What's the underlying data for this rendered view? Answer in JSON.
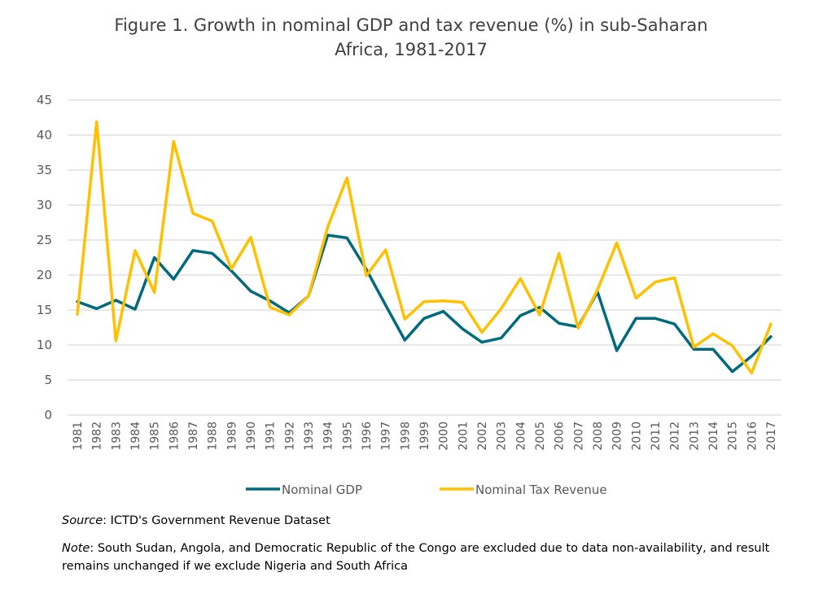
{
  "chart_data": {
    "type": "line",
    "title_line1": "Figure 1. Growth in nominal GDP and tax revenue (%) in sub-Saharan",
    "title_line2": "Africa, 1981-2017",
    "xlabel": "",
    "ylabel": "",
    "ylim": [
      0,
      45
    ],
    "yticks": [
      0,
      5,
      10,
      15,
      20,
      25,
      30,
      35,
      40,
      45
    ],
    "grid": true,
    "legend_position": "bottom",
    "categories": [
      "1981",
      "1982",
      "1983",
      "1984",
      "1985",
      "1986",
      "1987",
      "1988",
      "1989",
      "1990",
      "1991",
      "1992",
      "1993",
      "1994",
      "1995",
      "1996",
      "1997",
      "1998",
      "1999",
      "2000",
      "2001",
      "2002",
      "2003",
      "2004",
      "2005",
      "2006",
      "2007",
      "2008",
      "2009",
      "2010",
      "2011",
      "2012",
      "2013",
      "2014",
      "2015",
      "2016",
      "2017"
    ],
    "series": [
      {
        "name": "Nominal GDP",
        "color": "#006B7D",
        "values": [
          16.2,
          15.2,
          16.4,
          15.1,
          22.5,
          19.4,
          23.5,
          23.1,
          20.6,
          17.7,
          16.3,
          14.6,
          17.0,
          25.7,
          25.3,
          20.8,
          15.7,
          10.7,
          13.8,
          14.8,
          12.3,
          10.4,
          11.0,
          14.2,
          15.4,
          13.1,
          12.6,
          17.6,
          9.2,
          13.8,
          13.8,
          13.0,
          9.4,
          9.4,
          6.2,
          8.4,
          11.2
        ]
      },
      {
        "name": "Nominal Tax Revenue",
        "color": "#FFC000",
        "values": [
          14.4,
          41.9,
          10.6,
          23.5,
          17.5,
          39.1,
          28.8,
          27.7,
          20.9,
          25.4,
          15.4,
          14.3,
          17.0,
          26.9,
          33.9,
          19.9,
          23.6,
          13.7,
          16.2,
          16.3,
          16.1,
          11.8,
          15.2,
          19.5,
          14.3,
          23.1,
          12.4,
          17.9,
          24.6,
          16.7,
          19.0,
          19.6,
          9.7,
          11.6,
          9.9,
          6.0,
          13.0
        ]
      }
    ]
  },
  "footer": {
    "source_label": "Source",
    "source_text": ": ICTD's Government Revenue Dataset",
    "note_label": "Note",
    "note_text": ": South Sudan, Angola, and Democratic Republic of the Congo are excluded due to data non-availability, and result remains unchanged if we exclude Nigeria and South Africa"
  }
}
